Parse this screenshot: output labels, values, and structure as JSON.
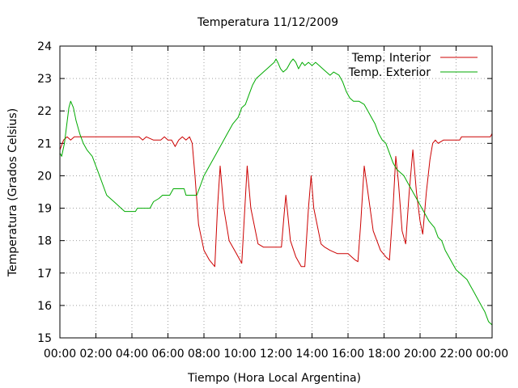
{
  "chart_data": {
    "type": "line",
    "title": "Temperatura 11/12/2009",
    "xlabel": "Tiempo (Hora Local Argentina)",
    "ylabel": "Temperatura (Grados Celsius)",
    "x_ticks": [
      "00:00",
      "02:00",
      "04:00",
      "06:00",
      "08:00",
      "10:00",
      "12:00",
      "14:00",
      "16:00",
      "18:00",
      "20:00",
      "22:00",
      "00:00"
    ],
    "y_ticks": [
      "15",
      "16",
      "17",
      "18",
      "19",
      "20",
      "21",
      "22",
      "23",
      "24"
    ],
    "xlim_hours": [
      0,
      24
    ],
    "ylim": [
      15,
      24
    ],
    "grid": true,
    "legend_position": "top-right",
    "series": [
      {
        "name": "Temp. Interior",
        "color": "#cc0000",
        "points": [
          [
            0,
            20.8
          ],
          [
            0.2,
            21.1
          ],
          [
            0.4,
            21.2
          ],
          [
            0.6,
            21.1
          ],
          [
            0.8,
            21.2
          ],
          [
            1,
            21.2
          ],
          [
            2,
            21.2
          ],
          [
            3,
            21.2
          ],
          [
            4,
            21.2
          ],
          [
            4.4,
            21.2
          ],
          [
            4.6,
            21.1
          ],
          [
            4.8,
            21.2
          ],
          [
            5.2,
            21.1
          ],
          [
            5.6,
            21.1
          ],
          [
            5.8,
            21.2
          ],
          [
            6.0,
            21.1
          ],
          [
            6.2,
            21.1
          ],
          [
            6.4,
            20.9
          ],
          [
            6.6,
            21.1
          ],
          [
            6.8,
            21.2
          ],
          [
            7.0,
            21.1
          ],
          [
            7.2,
            21.2
          ],
          [
            7.35,
            21.0
          ],
          [
            7.5,
            20.0
          ],
          [
            7.7,
            18.5
          ],
          [
            8.0,
            17.7
          ],
          [
            8.3,
            17.4
          ],
          [
            8.6,
            17.2
          ],
          [
            8.75,
            19.0
          ],
          [
            8.9,
            20.3
          ],
          [
            9.1,
            19.0
          ],
          [
            9.4,
            18.0
          ],
          [
            9.8,
            17.6
          ],
          [
            10.1,
            17.3
          ],
          [
            10.4,
            20.3
          ],
          [
            10.6,
            19.0
          ],
          [
            11.0,
            17.9
          ],
          [
            11.3,
            17.8
          ],
          [
            12.0,
            17.8
          ],
          [
            12.3,
            17.8
          ],
          [
            12.45,
            18.8
          ],
          [
            12.55,
            19.4
          ],
          [
            12.8,
            18.0
          ],
          [
            13.1,
            17.5
          ],
          [
            13.4,
            17.2
          ],
          [
            13.6,
            17.2
          ],
          [
            13.8,
            19.0
          ],
          [
            13.95,
            20.0
          ],
          [
            14.1,
            19.0
          ],
          [
            14.5,
            17.9
          ],
          [
            14.7,
            17.8
          ],
          [
            15.0,
            17.7
          ],
          [
            15.4,
            17.6
          ],
          [
            16.0,
            17.6
          ],
          [
            16.2,
            17.5
          ],
          [
            16.4,
            17.4
          ],
          [
            16.55,
            17.35
          ],
          [
            16.7,
            18.5
          ],
          [
            16.9,
            20.3
          ],
          [
            17.1,
            19.5
          ],
          [
            17.4,
            18.3
          ],
          [
            17.8,
            17.7
          ],
          [
            18.1,
            17.5
          ],
          [
            18.3,
            17.4
          ],
          [
            18.5,
            19.0
          ],
          [
            18.65,
            20.6
          ],
          [
            18.8,
            19.8
          ],
          [
            19.0,
            18.3
          ],
          [
            19.2,
            17.9
          ],
          [
            19.4,
            19.5
          ],
          [
            19.6,
            20.8
          ],
          [
            19.8,
            19.5
          ],
          [
            20.0,
            18.6
          ],
          [
            20.15,
            18.2
          ],
          [
            20.35,
            19.5
          ],
          [
            20.55,
            20.5
          ],
          [
            20.7,
            21.0
          ],
          [
            20.85,
            21.1
          ],
          [
            21.0,
            21.0
          ],
          [
            21.3,
            21.1
          ],
          [
            21.6,
            21.1
          ],
          [
            22.2,
            21.1
          ],
          [
            22.3,
            21.2
          ],
          [
            23,
            21.2
          ],
          [
            23.6,
            21.2
          ],
          [
            23.9,
            21.2
          ],
          [
            24,
            21.3
          ]
        ]
      },
      {
        "name": "Temp. Exterior",
        "color": "#00aa00",
        "points": [
          [
            0,
            20.7
          ],
          [
            0.1,
            20.6
          ],
          [
            0.25,
            21.0
          ],
          [
            0.5,
            22.1
          ],
          [
            0.6,
            22.3
          ],
          [
            0.75,
            22.1
          ],
          [
            0.9,
            21.7
          ],
          [
            1.1,
            21.3
          ],
          [
            1.3,
            21.0
          ],
          [
            1.5,
            20.8
          ],
          [
            1.8,
            20.6
          ],
          [
            2.0,
            20.3
          ],
          [
            2.2,
            20.0
          ],
          [
            2.4,
            19.7
          ],
          [
            2.6,
            19.4
          ],
          [
            2.8,
            19.3
          ],
          [
            3.0,
            19.2
          ],
          [
            3.2,
            19.1
          ],
          [
            3.4,
            19.0
          ],
          [
            3.6,
            18.9
          ],
          [
            4.0,
            18.9
          ],
          [
            4.2,
            18.9
          ],
          [
            4.3,
            19.0
          ],
          [
            4.5,
            19.0
          ],
          [
            4.8,
            19.0
          ],
          [
            5.0,
            19.0
          ],
          [
            5.2,
            19.2
          ],
          [
            5.5,
            19.3
          ],
          [
            5.7,
            19.4
          ],
          [
            6.0,
            19.4
          ],
          [
            6.1,
            19.4
          ],
          [
            6.3,
            19.6
          ],
          [
            6.5,
            19.6
          ],
          [
            6.9,
            19.6
          ],
          [
            7.0,
            19.4
          ],
          [
            7.4,
            19.4
          ],
          [
            7.6,
            19.4
          ],
          [
            7.8,
            19.7
          ],
          [
            8.0,
            20.0
          ],
          [
            8.3,
            20.3
          ],
          [
            8.6,
            20.6
          ],
          [
            9.0,
            21.0
          ],
          [
            9.3,
            21.3
          ],
          [
            9.6,
            21.6
          ],
          [
            9.9,
            21.8
          ],
          [
            10.1,
            22.1
          ],
          [
            10.3,
            22.2
          ],
          [
            10.5,
            22.5
          ],
          [
            10.7,
            22.8
          ],
          [
            10.9,
            23.0
          ],
          [
            11.1,
            23.1
          ],
          [
            11.3,
            23.2
          ],
          [
            11.5,
            23.3
          ],
          [
            11.7,
            23.4
          ],
          [
            11.9,
            23.5
          ],
          [
            12.0,
            23.6
          ],
          [
            12.1,
            23.5
          ],
          [
            12.25,
            23.3
          ],
          [
            12.4,
            23.2
          ],
          [
            12.6,
            23.3
          ],
          [
            12.8,
            23.5
          ],
          [
            12.95,
            23.6
          ],
          [
            13.1,
            23.5
          ],
          [
            13.25,
            23.3
          ],
          [
            13.45,
            23.5
          ],
          [
            13.6,
            23.4
          ],
          [
            13.8,
            23.5
          ],
          [
            14.0,
            23.4
          ],
          [
            14.2,
            23.5
          ],
          [
            14.4,
            23.4
          ],
          [
            14.6,
            23.3
          ],
          [
            14.8,
            23.2
          ],
          [
            15.0,
            23.1
          ],
          [
            15.2,
            23.2
          ],
          [
            15.5,
            23.1
          ],
          [
            15.7,
            22.9
          ],
          [
            15.9,
            22.6
          ],
          [
            16.1,
            22.4
          ],
          [
            16.3,
            22.3
          ],
          [
            16.6,
            22.3
          ],
          [
            16.9,
            22.2
          ],
          [
            17.1,
            22.0
          ],
          [
            17.3,
            21.8
          ],
          [
            17.5,
            21.6
          ],
          [
            17.7,
            21.3
          ],
          [
            17.9,
            21.1
          ],
          [
            18.1,
            21.0
          ],
          [
            18.3,
            20.7
          ],
          [
            18.5,
            20.4
          ],
          [
            18.7,
            20.2
          ],
          [
            18.9,
            20.1
          ],
          [
            19.1,
            20.0
          ],
          [
            19.3,
            19.8
          ],
          [
            19.5,
            19.6
          ],
          [
            19.7,
            19.4
          ],
          [
            19.9,
            19.2
          ],
          [
            20.1,
            19.0
          ],
          [
            20.3,
            18.8
          ],
          [
            20.5,
            18.6
          ],
          [
            20.8,
            18.4
          ],
          [
            21.0,
            18.1
          ],
          [
            21.2,
            18.0
          ],
          [
            21.4,
            17.7
          ],
          [
            21.6,
            17.5
          ],
          [
            21.8,
            17.3
          ],
          [
            22.0,
            17.1
          ],
          [
            22.2,
            17.0
          ],
          [
            22.4,
            16.9
          ],
          [
            22.6,
            16.8
          ],
          [
            22.8,
            16.6
          ],
          [
            23.0,
            16.4
          ],
          [
            23.2,
            16.2
          ],
          [
            23.4,
            16.0
          ],
          [
            23.6,
            15.8
          ],
          [
            23.8,
            15.5
          ],
          [
            24,
            15.4
          ]
        ]
      }
    ]
  }
}
